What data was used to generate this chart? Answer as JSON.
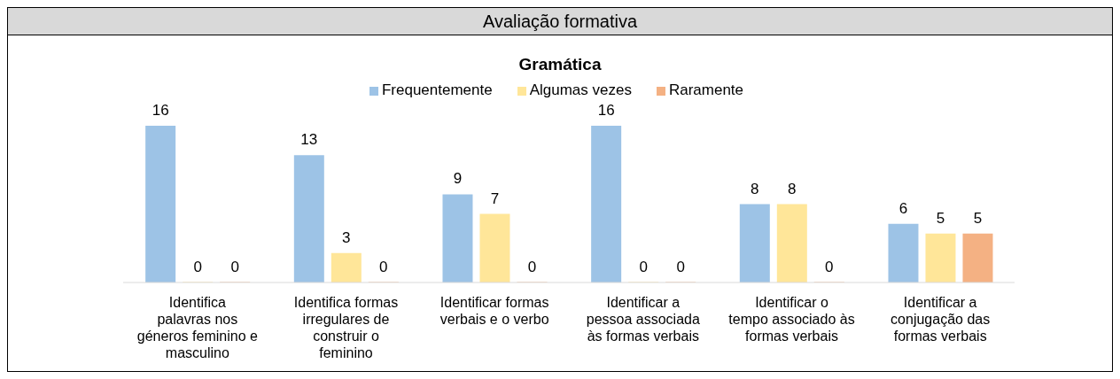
{
  "chart_data": {
    "type": "bar",
    "title": "Avaliação formativa",
    "subtitle": "Gramática",
    "categories": [
      "Identifica palavras nos géneros feminino e masculino",
      "Identifica formas irregulares de construir o feminino",
      "Identificar formas verbais e o verbo",
      "Identificar a pessoa associada às formas verbais",
      "Identificar o tempo associado às formas verbais",
      "Identificar a conjugação das formas verbais"
    ],
    "series": [
      {
        "name": "Frequentemente",
        "color": "#9dc3e6",
        "values": [
          16,
          13,
          9,
          16,
          8,
          6
        ]
      },
      {
        "name": "Algumas vezes",
        "color": "#ffe699",
        "values": [
          0,
          3,
          7,
          0,
          8,
          5
        ]
      },
      {
        "name": "Raramente",
        "color": "#f4b183",
        "values": [
          0,
          0,
          0,
          0,
          0,
          5
        ]
      }
    ],
    "data_labels": true,
    "legend": "top",
    "grid": false
  }
}
